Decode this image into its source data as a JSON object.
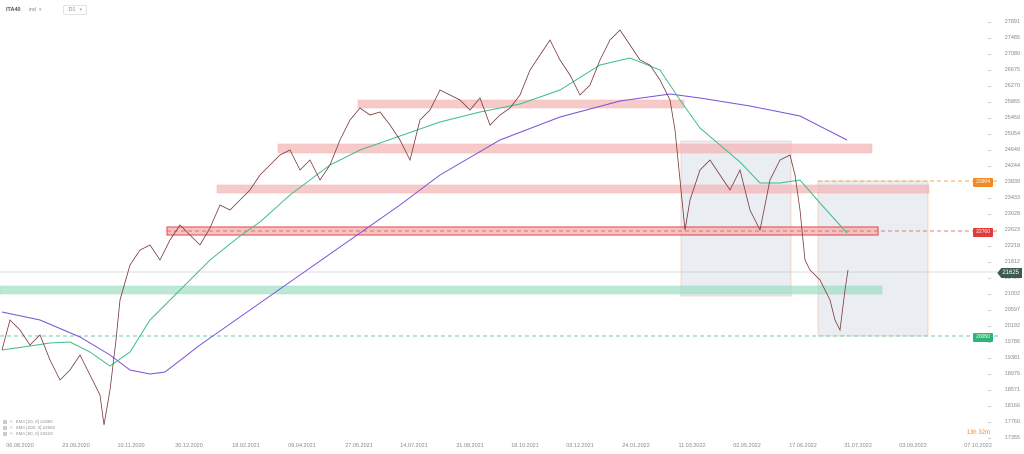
{
  "toolbar": {
    "symbol": "ITA40",
    "mode": "ind",
    "timeframe": "D1"
  },
  "y_axis": {
    "ticks": [
      "27891",
      "27485",
      "27080",
      "26675",
      "26270",
      "25865",
      "25459",
      "25054",
      "24649",
      "24244",
      "23839",
      "23433",
      "23028",
      "22623",
      "22218",
      "21812",
      "21407",
      "21002",
      "20597",
      "20192",
      "19786",
      "19381",
      "18976",
      "18571",
      "18166",
      "17760",
      "17355"
    ]
  },
  "x_axis": {
    "ticks": [
      "06.08.2020",
      "23.09.2020",
      "10.11.2020",
      "30.12.2020",
      "18.02.2021",
      "09.04.2021",
      "27.05.2021",
      "14.07.2021",
      "31.08.2021",
      "18.10.2021",
      "03.12.2021",
      "24.01.2022",
      "11.03.2022",
      "02.05.2022",
      "17.06.2022",
      "31.07.2022",
      "03.09.2022",
      "07.10.2022"
    ]
  },
  "price_labels": {
    "current": "21625",
    "orange_level": "23904",
    "red_level": "22760",
    "green_level": "20050"
  },
  "legend": [
    {
      "label": "EMA [20, 0] 21860"
    },
    {
      "label": "SMA [200, 0] 24982"
    },
    {
      "label": "SMA [50, 0] 22619"
    }
  ],
  "countdown": {
    "hours": "13",
    "h_unit": "h",
    "minutes": "32",
    "m_unit": "m"
  },
  "colors": {
    "up": "#2e7d5b",
    "down": "#b03a3a",
    "sma50": "#3dbd8a",
    "sma200": "#7b4fd6",
    "red_zone": "#f5b5b5",
    "green_zone": "#9fe0c5",
    "box_fill": "#e8ecf1",
    "orange": "#f08a24"
  },
  "chart_data": {
    "type": "line",
    "title": "ITA40 D1",
    "instrument": "ITA40",
    "timeframe": "D1",
    "xlabel": "",
    "ylabel": "",
    "ylim": [
      17355,
      27891
    ],
    "grid": false,
    "x": [
      "06.08.2020",
      "23.09.2020",
      "10.11.2020",
      "30.12.2020",
      "18.02.2021",
      "09.04.2021",
      "27.05.2021",
      "14.07.2021",
      "31.08.2021",
      "18.10.2021",
      "03.12.2021",
      "24.01.2022",
      "11.03.2022",
      "02.05.2022",
      "17.06.2022",
      "31.07.2022"
    ],
    "series": [
      {
        "name": "Price (close approx.)",
        "values": [
          19800,
          19600,
          20600,
          21900,
          22900,
          24300,
          25800,
          25500,
          26000,
          27100,
          27300,
          26300,
          22700,
          24500,
          21000,
          21625
        ]
      },
      {
        "name": "SMA [50, 0]",
        "values": [
          19600,
          19700,
          19500,
          21300,
          22600,
          23800,
          24700,
          25000,
          25500,
          26400,
          26700,
          26800,
          25000,
          23500,
          23000,
          22619
        ]
      },
      {
        "name": "SMA [200, 0]",
        "values": [
          20300,
          19700,
          19100,
          19900,
          21200,
          22500,
          23500,
          24400,
          25100,
          25700,
          26000,
          26200,
          26000,
          25700,
          25200,
          24982
        ]
      },
      {
        "name": "EMA [20, 0]",
        "values": [
          null,
          null,
          null,
          null,
          null,
          null,
          null,
          null,
          null,
          null,
          null,
          null,
          null,
          null,
          null,
          21860
        ]
      }
    ],
    "zones": [
      {
        "type": "resistance",
        "from": 25750,
        "to": 25950
      },
      {
        "type": "resistance",
        "from": 24450,
        "to": 24700
      },
      {
        "type": "resistance",
        "from": 23650,
        "to": 23850
      },
      {
        "type": "key_resistance",
        "from": 22600,
        "to": 22850,
        "level": 22760
      },
      {
        "type": "support",
        "from": 21150,
        "to": 21400
      }
    ],
    "levels": [
      {
        "name": "orange",
        "value": 23904,
        "style": "dashed"
      },
      {
        "name": "red",
        "value": 22760,
        "style": "dashed"
      },
      {
        "name": "green",
        "value": 20050,
        "style": "dashed"
      },
      {
        "name": "current",
        "value": 21625,
        "style": "solid"
      }
    ],
    "annotations": [
      "measured-move box Feb–Jun 2022",
      "projected box Jun–Sep 2022",
      "countdown 13h 32m"
    ]
  }
}
